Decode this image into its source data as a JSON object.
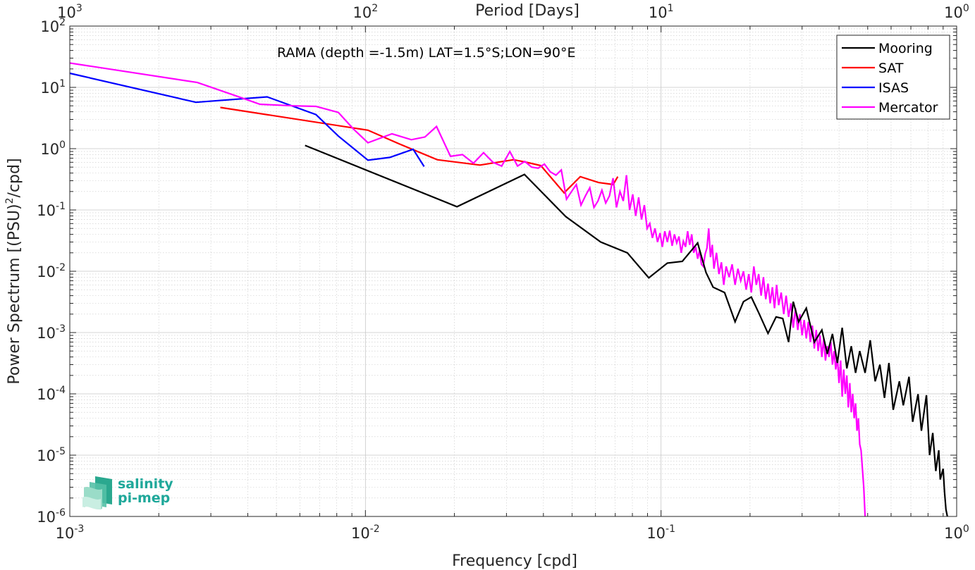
{
  "chart_data": {
    "type": "line",
    "x_scale": "log",
    "y_scale": "log",
    "xlim": [
      0.001,
      1
    ],
    "ylim": [
      1e-06,
      100
    ],
    "xlabel": "Frequency [cpd]",
    "ylabel": "Power Spectrum [(PSU)",
    "ylabel_sup": "2",
    "ylabel_tail": "/cpd]",
    "top_axis_label": "Period [Days]",
    "annotation": "RAMA (depth =-1.5m) LAT=1.5°S;LON=90°E",
    "grid": true,
    "legend_position": "top-right",
    "x_ticks": [
      {
        "base": "10",
        "exp": "-3",
        "value": 0.001
      },
      {
        "base": "10",
        "exp": "-2",
        "value": 0.01
      },
      {
        "base": "10",
        "exp": "-1",
        "value": 0.1
      },
      {
        "base": "10",
        "exp": "0",
        "value": 1
      }
    ],
    "top_ticks": [
      {
        "base": "10",
        "exp": "3",
        "value": 0.001
      },
      {
        "base": "10",
        "exp": "2",
        "value": 0.01
      },
      {
        "base": "10",
        "exp": "1",
        "value": 0.1
      },
      {
        "base": "10",
        "exp": "0",
        "value": 1
      }
    ],
    "y_ticks": [
      {
        "base": "10",
        "exp": "2",
        "value": 100
      },
      {
        "base": "10",
        "exp": "1",
        "value": 10
      },
      {
        "base": "10",
        "exp": "0",
        "value": 1
      },
      {
        "base": "10",
        "exp": "-1",
        "value": 0.1
      },
      {
        "base": "10",
        "exp": "-2",
        "value": 0.01
      },
      {
        "base": "10",
        "exp": "-3",
        "value": 0.001
      },
      {
        "base": "10",
        "exp": "-4",
        "value": 0.0001
      },
      {
        "base": "10",
        "exp": "-5",
        "value": 1e-05
      },
      {
        "base": "10",
        "exp": "-6",
        "value": 1e-06
      }
    ],
    "series": [
      {
        "name": "Mooring",
        "color": "#000000",
        "points": [
          [
            0.00625,
            1.13
          ],
          [
            0.0204,
            0.113
          ],
          [
            0.0345,
            0.38
          ],
          [
            0.0476,
            0.078
          ],
          [
            0.0625,
            0.03
          ],
          [
            0.0769,
            0.02
          ],
          [
            0.0909,
            0.0078
          ],
          [
            0.105,
            0.0136
          ],
          [
            0.118,
            0.0145
          ],
          [
            0.133,
            0.029
          ],
          [
            0.142,
            0.0095
          ],
          [
            0.15,
            0.0055
          ],
          [
            0.164,
            0.0045
          ],
          [
            0.178,
            0.0015
          ],
          [
            0.19,
            0.0032
          ],
          [
            0.202,
            0.0038
          ],
          [
            0.215,
            0.002
          ],
          [
            0.23,
            0.00097
          ],
          [
            0.245,
            0.0018
          ],
          [
            0.258,
            0.0017
          ],
          [
            0.27,
            0.0007
          ],
          [
            0.28,
            0.0032
          ],
          [
            0.292,
            0.0015
          ],
          [
            0.31,
            0.0025
          ],
          [
            0.33,
            0.0007
          ],
          [
            0.35,
            0.0011
          ],
          [
            0.365,
            0.00045
          ],
          [
            0.38,
            0.00095
          ],
          [
            0.395,
            0.00032
          ],
          [
            0.41,
            0.0012
          ],
          [
            0.425,
            0.00026
          ],
          [
            0.44,
            0.0006
          ],
          [
            0.455,
            0.00022
          ],
          [
            0.47,
            0.0005
          ],
          [
            0.49,
            0.00022
          ],
          [
            0.51,
            0.00075
          ],
          [
            0.53,
            0.00016
          ],
          [
            0.55,
            0.0003
          ],
          [
            0.57,
            8.6e-05
          ],
          [
            0.59,
            0.00032
          ],
          [
            0.61,
            5.5e-05
          ],
          [
            0.64,
            0.00016
          ],
          [
            0.66,
            6.5e-05
          ],
          [
            0.69,
            0.00019
          ],
          [
            0.71,
            3.5e-05
          ],
          [
            0.74,
            9.9e-05
          ],
          [
            0.76,
            2.5e-05
          ],
          [
            0.79,
            9.5e-05
          ],
          [
            0.81,
            1e-05
          ],
          [
            0.83,
            2.3e-05
          ],
          [
            0.85,
            5.5e-06
          ],
          [
            0.87,
            1.2e-05
          ],
          [
            0.88,
            4e-06
          ],
          [
            0.9,
            6e-06
          ],
          [
            0.91,
            2.5e-06
          ],
          [
            0.92,
            1.3e-06
          ],
          [
            0.93,
            1e-06
          ]
        ]
      },
      {
        "name": "SAT",
        "color": "#ff0000",
        "points": [
          [
            0.00323,
            4.7
          ],
          [
            0.0102,
            2.0
          ],
          [
            0.013,
            1.2
          ],
          [
            0.0175,
            0.66
          ],
          [
            0.0244,
            0.54
          ],
          [
            0.0317,
            0.66
          ],
          [
            0.0345,
            0.61
          ],
          [
            0.0392,
            0.53
          ],
          [
            0.047,
            0.19
          ],
          [
            0.0533,
            0.35
          ],
          [
            0.0615,
            0.28
          ],
          [
            0.0689,
            0.26
          ],
          [
            0.0714,
            0.35
          ]
        ]
      },
      {
        "name": "ISAS",
        "color": "#0000ff",
        "points": [
          [
            0.001,
            17
          ],
          [
            0.00267,
            5.7
          ],
          [
            0.00465,
            7.0
          ],
          [
            0.0068,
            3.6
          ],
          [
            0.0081,
            1.6
          ],
          [
            0.0102,
            0.65
          ],
          [
            0.0121,
            0.72
          ],
          [
            0.0145,
            0.98
          ],
          [
            0.0158,
            0.51
          ]
        ]
      },
      {
        "name": "Mercator",
        "color": "#ff00ff",
        "points": [
          [
            0.001,
            25
          ],
          [
            0.0027,
            12
          ],
          [
            0.0037,
            7.1
          ],
          [
            0.0044,
            5.3
          ],
          [
            0.0057,
            5.0
          ],
          [
            0.0068,
            4.9
          ],
          [
            0.0081,
            3.9
          ],
          [
            0.0091,
            2.1
          ],
          [
            0.0102,
            1.25
          ],
          [
            0.0123,
            1.75
          ],
          [
            0.0143,
            1.4
          ],
          [
            0.0159,
            1.55
          ],
          [
            0.0174,
            2.3
          ],
          [
            0.0194,
            0.75
          ],
          [
            0.0213,
            0.8
          ],
          [
            0.0232,
            0.58
          ],
          [
            0.0251,
            0.86
          ],
          [
            0.027,
            0.6
          ],
          [
            0.0289,
            0.52
          ],
          [
            0.0308,
            0.9
          ],
          [
            0.0327,
            0.52
          ],
          [
            0.0346,
            0.62
          ],
          [
            0.0365,
            0.5
          ],
          [
            0.0384,
            0.48
          ],
          [
            0.0403,
            0.56
          ],
          [
            0.0422,
            0.42
          ],
          [
            0.0441,
            0.37
          ],
          [
            0.046,
            0.45
          ],
          [
            0.0479,
            0.15
          ],
          [
            0.0498,
            0.2
          ],
          [
            0.0517,
            0.26
          ],
          [
            0.0536,
            0.12
          ],
          [
            0.0555,
            0.17
          ],
          [
            0.0574,
            0.23
          ],
          [
            0.0593,
            0.11
          ],
          [
            0.0612,
            0.14
          ],
          [
            0.0631,
            0.21
          ],
          [
            0.065,
            0.13
          ],
          [
            0.0669,
            0.17
          ],
          [
            0.0688,
            0.33
          ],
          [
            0.0707,
            0.11
          ],
          [
            0.0726,
            0.2
          ],
          [
            0.0745,
            0.14
          ],
          [
            0.0764,
            0.37
          ],
          [
            0.0783,
            0.1
          ],
          [
            0.0802,
            0.18
          ],
          [
            0.0821,
            0.08
          ],
          [
            0.084,
            0.16
          ],
          [
            0.0859,
            0.07
          ],
          [
            0.0878,
            0.12
          ],
          [
            0.0897,
            0.05
          ],
          [
            0.0916,
            0.06
          ],
          [
            0.0935,
            0.035
          ],
          [
            0.0954,
            0.05
          ],
          [
            0.0973,
            0.03
          ],
          [
            0.0992,
            0.042
          ],
          [
            0.101,
            0.025
          ],
          [
            0.103,
            0.045
          ],
          [
            0.105,
            0.03
          ],
          [
            0.107,
            0.046
          ],
          [
            0.109,
            0.026
          ],
          [
            0.111,
            0.04
          ],
          [
            0.113,
            0.029
          ],
          [
            0.115,
            0.037
          ],
          [
            0.117,
            0.02
          ],
          [
            0.119,
            0.031
          ],
          [
            0.121,
            0.025
          ],
          [
            0.123,
            0.045
          ],
          [
            0.125,
            0.027
          ],
          [
            0.127,
            0.04
          ],
          [
            0.129,
            0.02
          ],
          [
            0.131,
            0.025
          ],
          [
            0.133,
            0.016
          ],
          [
            0.135,
            0.022
          ],
          [
            0.137,
            0.013
          ],
          [
            0.139,
            0.012
          ],
          [
            0.141,
            0.019
          ],
          [
            0.143,
            0.024
          ],
          [
            0.145,
            0.05
          ],
          [
            0.147,
            0.017
          ],
          [
            0.149,
            0.027
          ],
          [
            0.151,
            0.011
          ],
          [
            0.154,
            0.02
          ],
          [
            0.157,
            0.009
          ],
          [
            0.16,
            0.014
          ],
          [
            0.163,
            0.006
          ],
          [
            0.166,
            0.012
          ],
          [
            0.17,
            0.008
          ],
          [
            0.174,
            0.013
          ],
          [
            0.178,
            0.006
          ],
          [
            0.182,
            0.011
          ],
          [
            0.186,
            0.007
          ],
          [
            0.19,
            0.01
          ],
          [
            0.194,
            0.005
          ],
          [
            0.198,
            0.009
          ],
          [
            0.202,
            0.0045
          ],
          [
            0.206,
            0.012
          ],
          [
            0.21,
            0.006
          ],
          [
            0.214,
            0.009
          ],
          [
            0.218,
            0.004
          ],
          [
            0.222,
            0.008
          ],
          [
            0.226,
            0.0035
          ],
          [
            0.23,
            0.0063
          ],
          [
            0.234,
            0.003
          ],
          [
            0.238,
            0.0055
          ],
          [
            0.242,
            0.0025
          ],
          [
            0.246,
            0.006
          ],
          [
            0.25,
            0.0028
          ],
          [
            0.255,
            0.0045
          ],
          [
            0.26,
            0.002
          ],
          [
            0.265,
            0.004
          ],
          [
            0.27,
            0.0018
          ],
          [
            0.275,
            0.003
          ],
          [
            0.28,
            0.0012
          ],
          [
            0.285,
            0.0025
          ],
          [
            0.29,
            0.0011
          ],
          [
            0.295,
            0.002
          ],
          [
            0.3,
            0.0009
          ],
          [
            0.305,
            0.0016
          ],
          [
            0.31,
            0.0008
          ],
          [
            0.315,
            0.0015
          ],
          [
            0.32,
            0.0007
          ],
          [
            0.325,
            0.0013
          ],
          [
            0.33,
            0.00055
          ],
          [
            0.335,
            0.0011
          ],
          [
            0.34,
            0.0005
          ],
          [
            0.345,
            0.0009
          ],
          [
            0.35,
            0.0004
          ],
          [
            0.355,
            0.0008
          ],
          [
            0.36,
            0.00035
          ],
          [
            0.365,
            0.0006
          ],
          [
            0.37,
            0.0004
          ],
          [
            0.375,
            0.0007
          ],
          [
            0.38,
            0.0003
          ],
          [
            0.385,
            0.0005
          ],
          [
            0.39,
            0.00025
          ],
          [
            0.395,
            0.0004
          ],
          [
            0.4,
            0.00015
          ],
          [
            0.405,
            0.00035
          ],
          [
            0.41,
            9e-05
          ],
          [
            0.415,
            0.00025
          ],
          [
            0.42,
            0.0001
          ],
          [
            0.425,
            0.0002
          ],
          [
            0.43,
            6e-05
          ],
          [
            0.435,
            0.00015
          ],
          [
            0.44,
            5e-05
          ],
          [
            0.445,
            0.0001
          ],
          [
            0.45,
            4e-05
          ],
          [
            0.455,
            7e-05
          ],
          [
            0.46,
            2.5e-05
          ],
          [
            0.465,
            4e-05
          ],
          [
            0.47,
            1.5e-05
          ],
          [
            0.475,
            1.2e-05
          ],
          [
            0.48,
            6e-06
          ],
          [
            0.485,
            3e-06
          ],
          [
            0.49,
            1e-06
          ]
        ]
      }
    ]
  },
  "logo": {
    "line1": "salinity",
    "line2": "pi-mep"
  }
}
